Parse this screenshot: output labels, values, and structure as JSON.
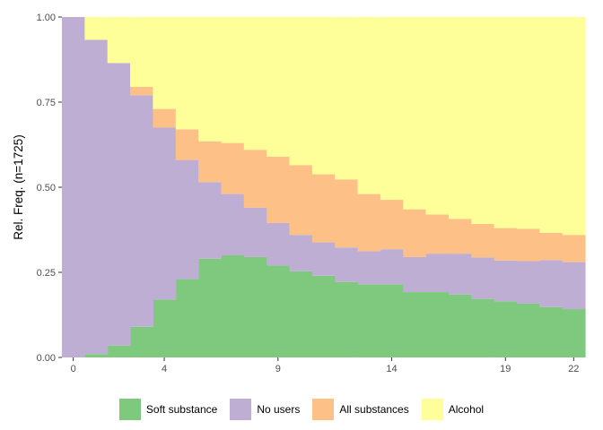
{
  "chart_data": {
    "type": "area",
    "stacked": true,
    "normalized": true,
    "ylabel": "Rel. Freq. (n=1725)",
    "xlabel": "",
    "xlim": [
      -0.5,
      22.5
    ],
    "ylim": [
      0,
      1
    ],
    "x_ticks": [
      0,
      4,
      9,
      14,
      19,
      22
    ],
    "y_ticks": [
      "0.00",
      "0.25",
      "0.50",
      "0.75",
      "1.00"
    ],
    "y_tick_values": [
      0,
      0.25,
      0.5,
      0.75,
      1
    ],
    "grid": false,
    "legend_position": "bottom",
    "x": [
      0,
      1,
      2,
      3,
      4,
      5,
      6,
      7,
      8,
      9,
      10,
      11,
      12,
      13,
      14,
      15,
      16,
      17,
      18,
      19,
      20,
      21,
      22
    ],
    "series": [
      {
        "name": "Soft substance",
        "color": "#7fc97f",
        "values": [
          0,
          0.01,
          0.035,
          0.09,
          0.17,
          0.23,
          0.29,
          0.3,
          0.295,
          0.27,
          0.253,
          0.24,
          0.222,
          0.215,
          0.215,
          0.192,
          0.192,
          0.185,
          0.172,
          0.165,
          0.158,
          0.148,
          0.142
        ]
      },
      {
        "name": "No users",
        "color": "#beaed4",
        "values": [
          1.0,
          0.923,
          0.83,
          0.68,
          0.505,
          0.35,
          0.225,
          0.18,
          0.145,
          0.125,
          0.107,
          0.098,
          0.101,
          0.097,
          0.103,
          0.103,
          0.113,
          0.12,
          0.122,
          0.12,
          0.125,
          0.138,
          0.138
        ]
      },
      {
        "name": "All substances",
        "color": "#fdc086",
        "values": [
          0,
          0,
          0,
          0.025,
          0.055,
          0.09,
          0.12,
          0.15,
          0.17,
          0.195,
          0.205,
          0.2,
          0.2,
          0.168,
          0.145,
          0.14,
          0.115,
          0.102,
          0.098,
          0.095,
          0.095,
          0.08,
          0.08
        ]
      },
      {
        "name": "Alcohol",
        "color": "#ffff99",
        "values": [
          0,
          0.067,
          0.135,
          0.205,
          0.27,
          0.33,
          0.365,
          0.37,
          0.39,
          0.41,
          0.435,
          0.462,
          0.477,
          0.52,
          0.537,
          0.565,
          0.58,
          0.593,
          0.608,
          0.62,
          0.622,
          0.634,
          0.64
        ]
      }
    ]
  }
}
